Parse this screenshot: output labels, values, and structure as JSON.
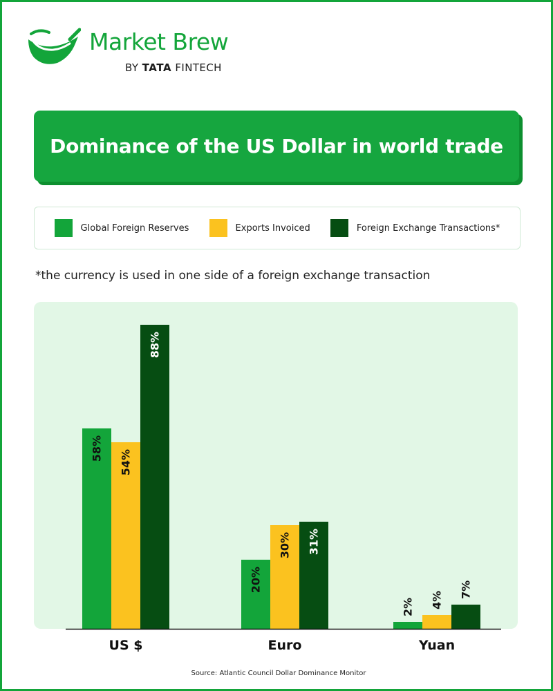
{
  "brand": {
    "name": "Market Brew",
    "byline_prefix": "BY",
    "byline_bold": "TATA",
    "byline_suffix": "FINTECH"
  },
  "footnote": "*the currency is used in one side of a foreign exchange transaction",
  "source": "Source: Atlantic Council Dollar Dominance Monitor",
  "colors": {
    "reserves": "#13a53a",
    "exports": "#fbc21f",
    "fx": "#064d12",
    "panel": "#e2f7e6",
    "frame": "#13a53a"
  },
  "chart_data": {
    "type": "bar",
    "title": "Dominance of the US Dollar in world trade",
    "categories": [
      "US $",
      "Euro",
      "Yuan"
    ],
    "series": [
      {
        "name": "Global Foreign Reserves",
        "values": [
          58,
          20,
          2
        ],
        "labels": [
          "58%",
          "20%",
          "2%"
        ],
        "color": "#13a53a"
      },
      {
        "name": "Exports Invoiced",
        "values": [
          54,
          30,
          4
        ],
        "labels": [
          "54%",
          "30%",
          "4%"
        ],
        "color": "#fbc21f"
      },
      {
        "name": "Foreign Exchange Transactions*",
        "values": [
          88,
          31,
          7
        ],
        "labels": [
          "88%",
          "31%",
          "7%"
        ],
        "color": "#064d12"
      }
    ],
    "ylim": [
      0,
      100
    ],
    "grid": false,
    "legend_position": "top",
    "xlabel": "",
    "ylabel": ""
  }
}
